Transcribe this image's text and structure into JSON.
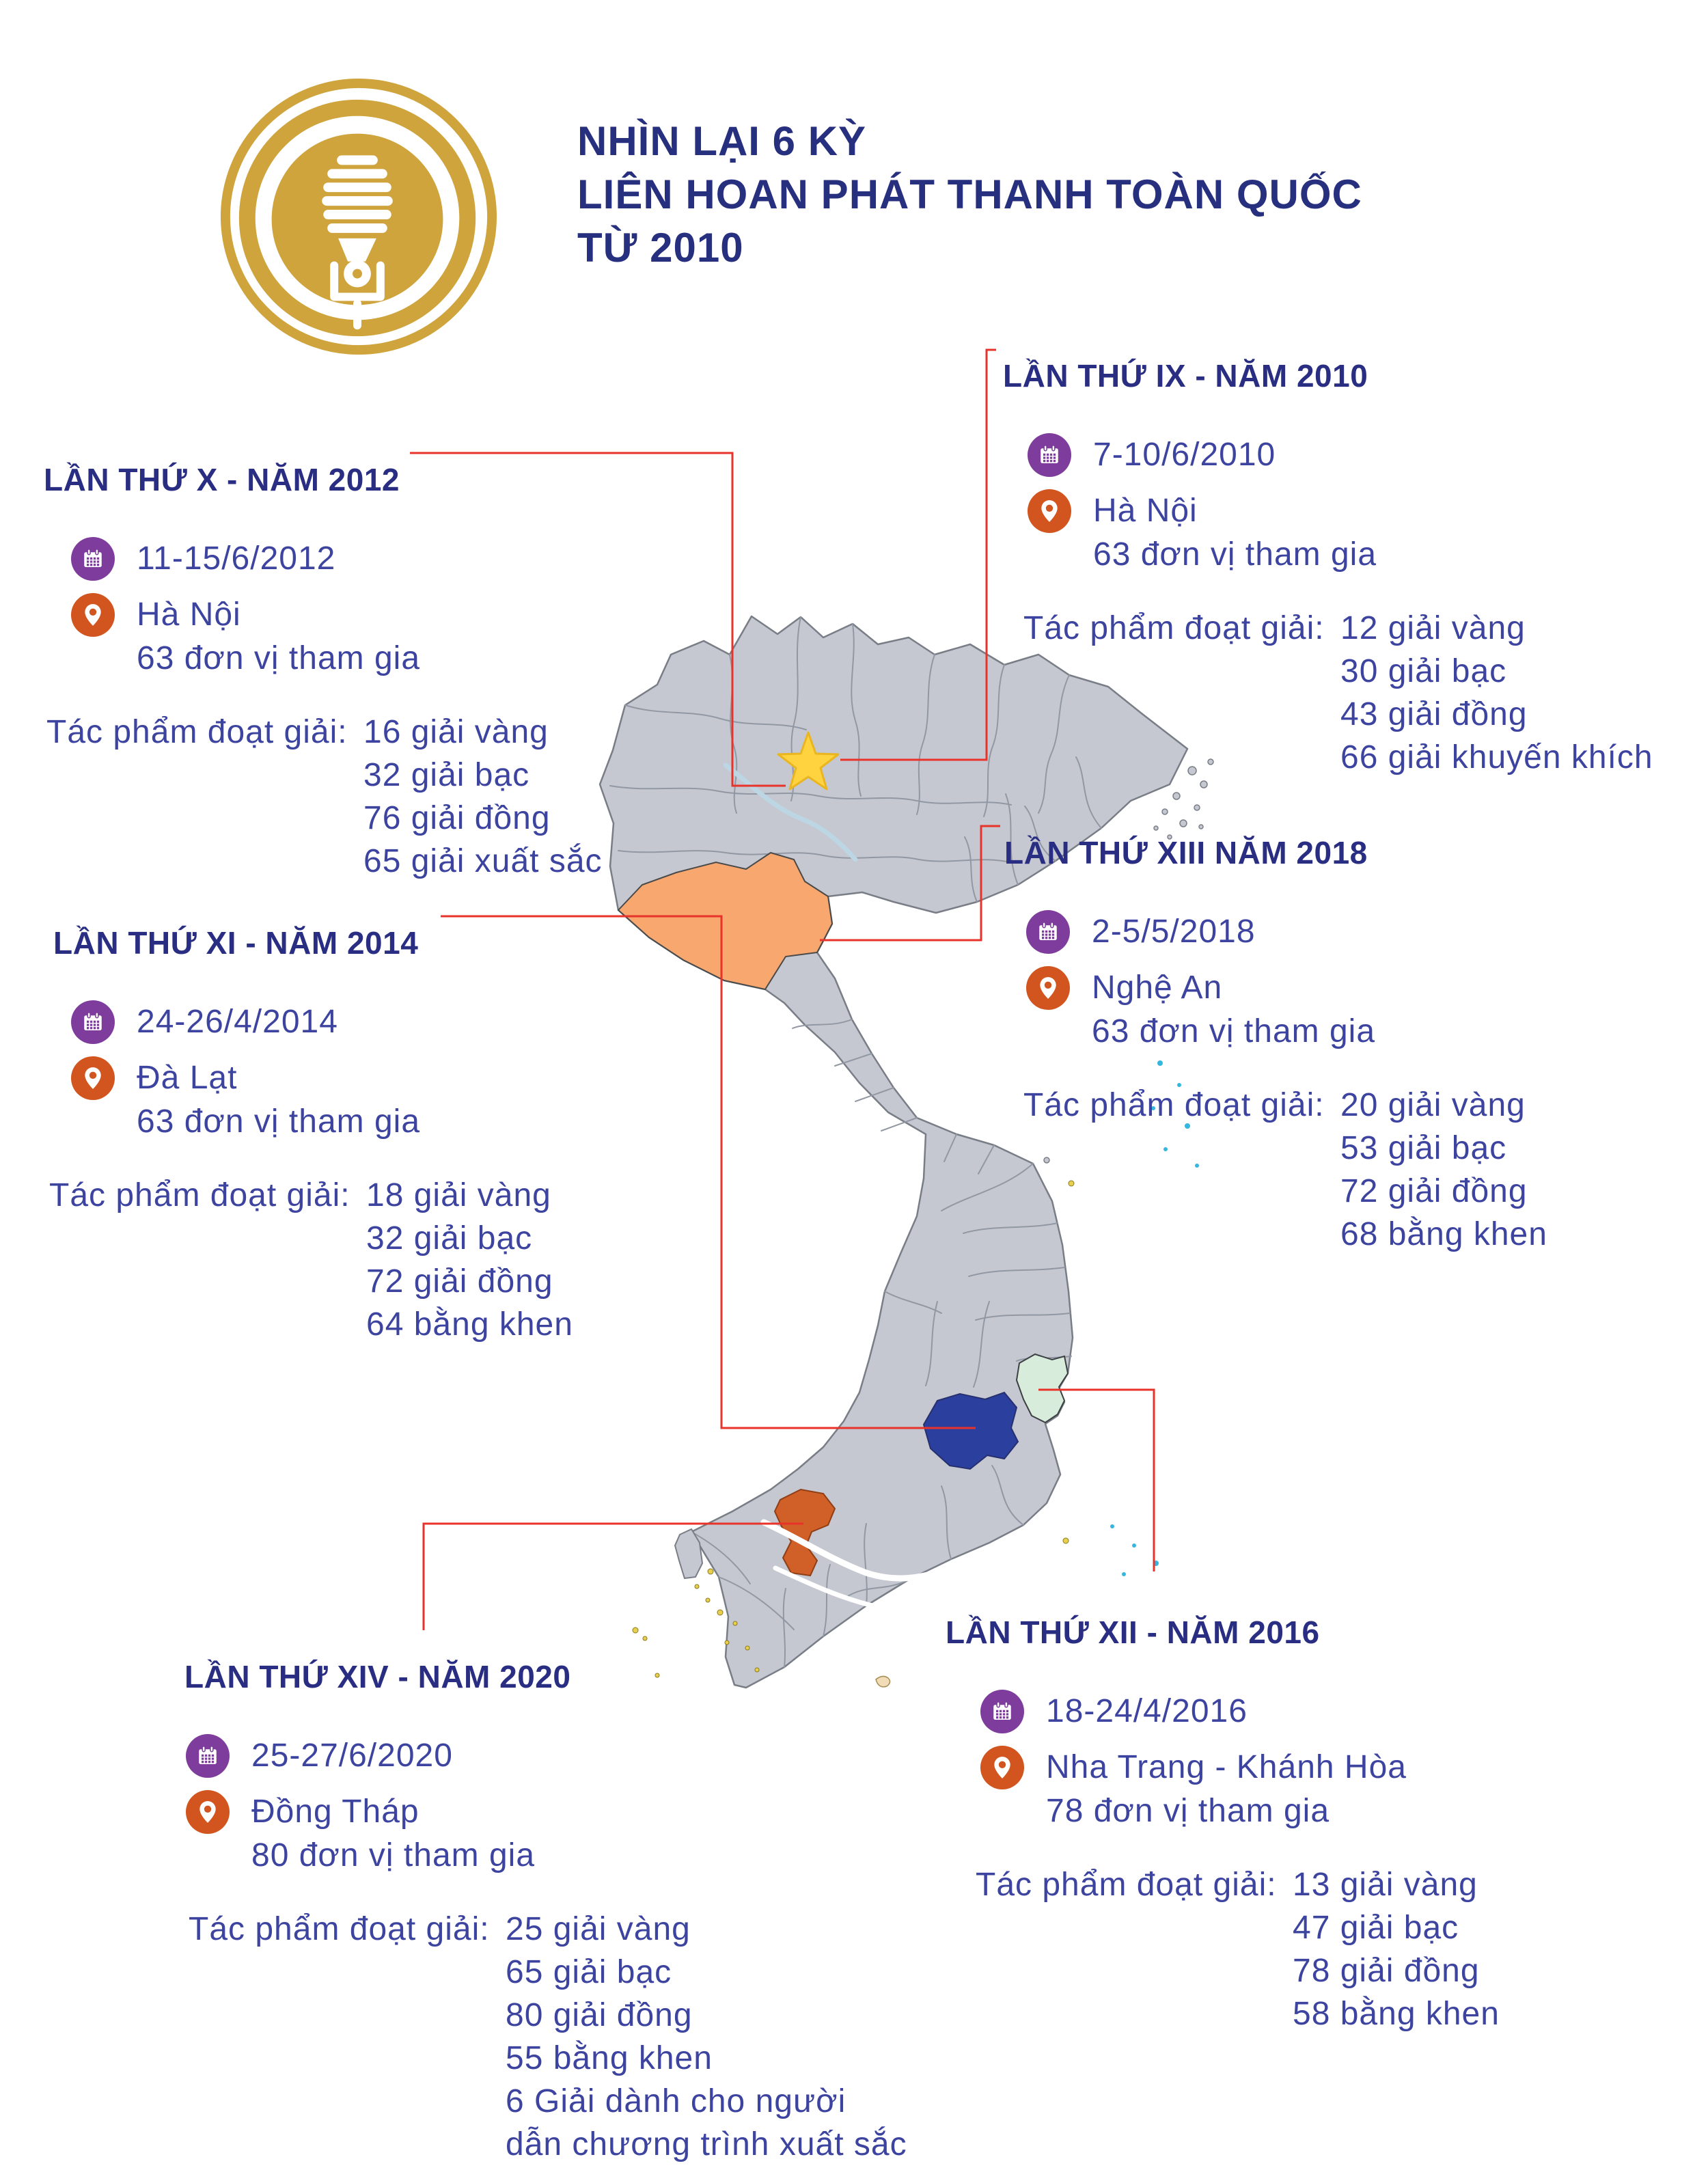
{
  "header": {
    "logo": {
      "icon": "radio-microphone-badge-icon",
      "color": "#CFA43D"
    },
    "title_lines": [
      "NHÌN LẠI 6 KỲ",
      "LIÊN HOAN PHÁT THANH TOÀN QUỐC",
      "TỪ 2010"
    ],
    "title_color": "#272F7F"
  },
  "sections": [
    {
      "title": "LẦN THỨ IX - NĂM 2010",
      "date": "7-10/6/2010",
      "place": "Hà Nội",
      "participants": "63 đơn vị tham gia",
      "awards_label": "Tác phẩm đoạt giải:",
      "awards": [
        "12 giải vàng",
        "30 giải bạc",
        "43 giải đồng",
        "66 giải khuyến khích"
      ]
    },
    {
      "title": "LẦN THỨ X - NĂM 2012",
      "date": "11-15/6/2012",
      "place": "Hà Nội",
      "participants": "63 đơn vị tham gia",
      "awards_label": "Tác phẩm đoạt giải:",
      "awards": [
        "16 giải vàng",
        "32 giải bạc",
        "76 giải đồng",
        "65 giải xuất sắc"
      ]
    },
    {
      "title": "LẦN THỨ XI - NĂM 2014",
      "date": "24-26/4/2014",
      "place": "Đà Lạt",
      "participants": "63 đơn vị tham gia",
      "awards_label": "Tác phẩm đoạt giải:",
      "awards": [
        "18 giải vàng",
        "32 giải bạc",
        "72 giải đồng",
        "64 bằng khen"
      ]
    },
    {
      "title": "LẦN THỨ XIII NĂM 2018",
      "date": "2-5/5/2018",
      "place": "Nghệ An",
      "participants": "63 đơn vị tham gia",
      "awards_label": "Tác phẩm đoạt giải:",
      "awards": [
        "20 giải vàng",
        "53 giải bạc",
        "72 giải đồng",
        "68 bằng khen"
      ]
    },
    {
      "title": "LẦN THỨ XII - NĂM 2016",
      "date": "18-24/4/2016",
      "place": "Nha Trang - Khánh Hòa",
      "participants": "78 đơn vị tham gia",
      "awards_label": "Tác phẩm đoạt giải:",
      "awards": [
        "13 giải vàng",
        "47 giải bạc",
        "78 giải đồng",
        "58 bằng khen"
      ]
    },
    {
      "title": "LẦN THỨ XIV - NĂM 2020",
      "date": "25-27/6/2020",
      "place": "Đồng Tháp",
      "participants": "80 đơn vị tham gia",
      "awards_label": "Tác phẩm đoạt giải:",
      "awards": [
        "25 giải vàng",
        "65 giải bạc",
        "80 giải đồng",
        "55 bằng khen",
        "6 Giải dành cho người dẫn chương trình xuất sắc"
      ]
    }
  ],
  "map": {
    "country": "Việt Nam",
    "star_marker": {
      "place": "Hà Nội",
      "color": "#FFD23F"
    },
    "highlighted_provinces": [
      {
        "place": "Nghệ An",
        "color": "#F8A76F"
      },
      {
        "place": "Đà Lạt (Lâm Đồng)",
        "color": "#2B3F9E"
      },
      {
        "place": "Nha Trang - Khánh Hòa",
        "color": "#D7ECDA"
      },
      {
        "place": "Đồng Tháp",
        "color": "#D15F28"
      }
    ],
    "connector_color": "#E8332A"
  }
}
